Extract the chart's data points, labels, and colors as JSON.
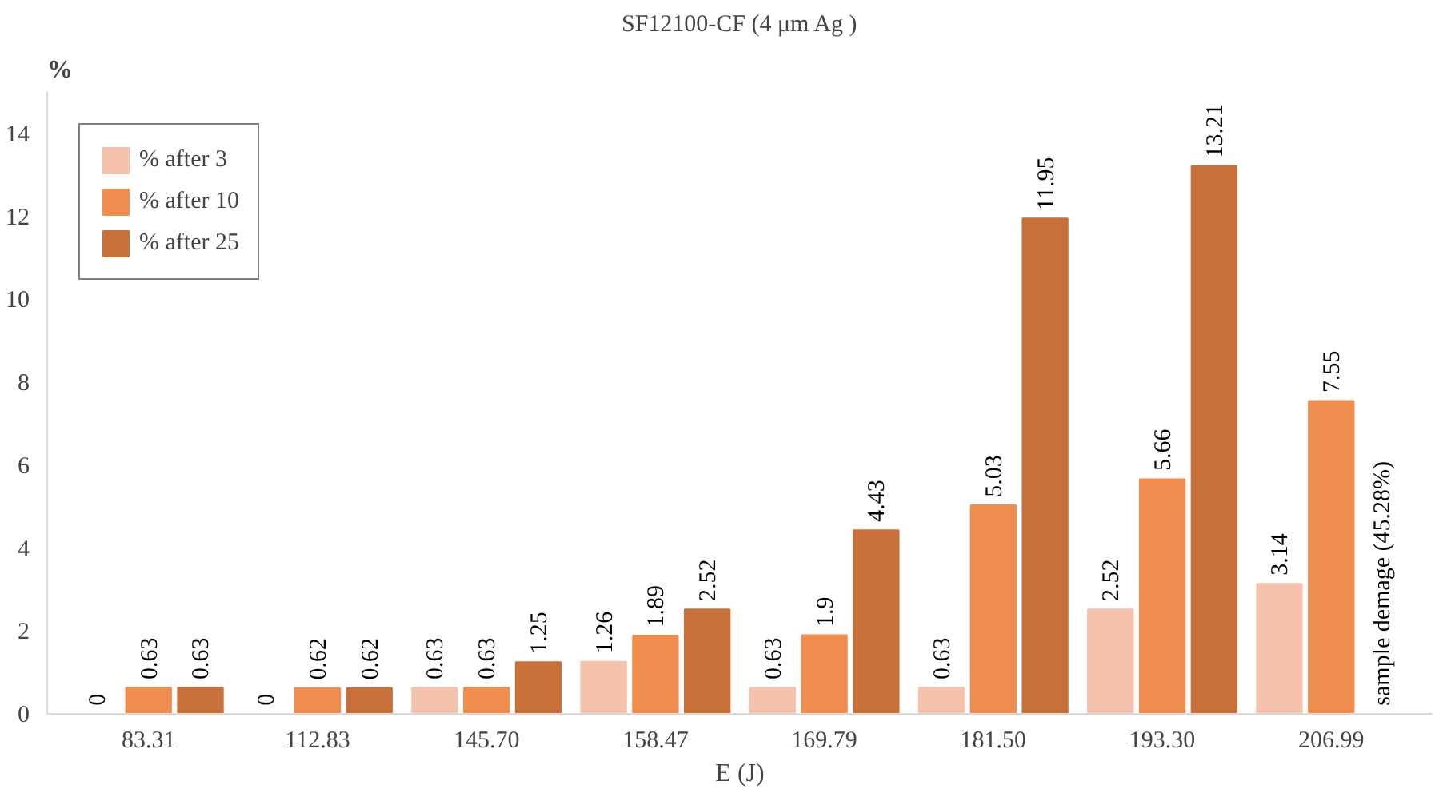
{
  "chart_data": {
    "type": "bar",
    "title": "SF12100-CF (4 μm Ag )",
    "xlabel": "E (J)",
    "ylabel": "%",
    "categories": [
      "83.31",
      "112.83",
      "145.70",
      "158.47",
      "169.79",
      "181.50",
      "193.30",
      "206.99"
    ],
    "series": [
      {
        "name": "% after 3",
        "color": "#f5c2ad",
        "values": [
          0,
          0,
          0.63,
          1.26,
          0.63,
          0.63,
          2.52,
          3.14
        ]
      },
      {
        "name": "% after 10",
        "color": "#ef8e4f",
        "values": [
          0.63,
          0.62,
          0.63,
          1.89,
          1.9,
          5.03,
          5.66,
          7.55
        ]
      },
      {
        "name": "% after 25",
        "color": "#c8703a",
        "values": [
          0.63,
          0.62,
          1.25,
          2.52,
          4.43,
          11.95,
          13.21,
          null
        ]
      }
    ],
    "ylim": [
      0,
      15
    ],
    "yticks": [
      0,
      2,
      4,
      6,
      8,
      10,
      12,
      14
    ],
    "grid": false,
    "legend": "top left",
    "data_labels": true,
    "annotations": [
      "sample demage (45.28%)"
    ]
  }
}
